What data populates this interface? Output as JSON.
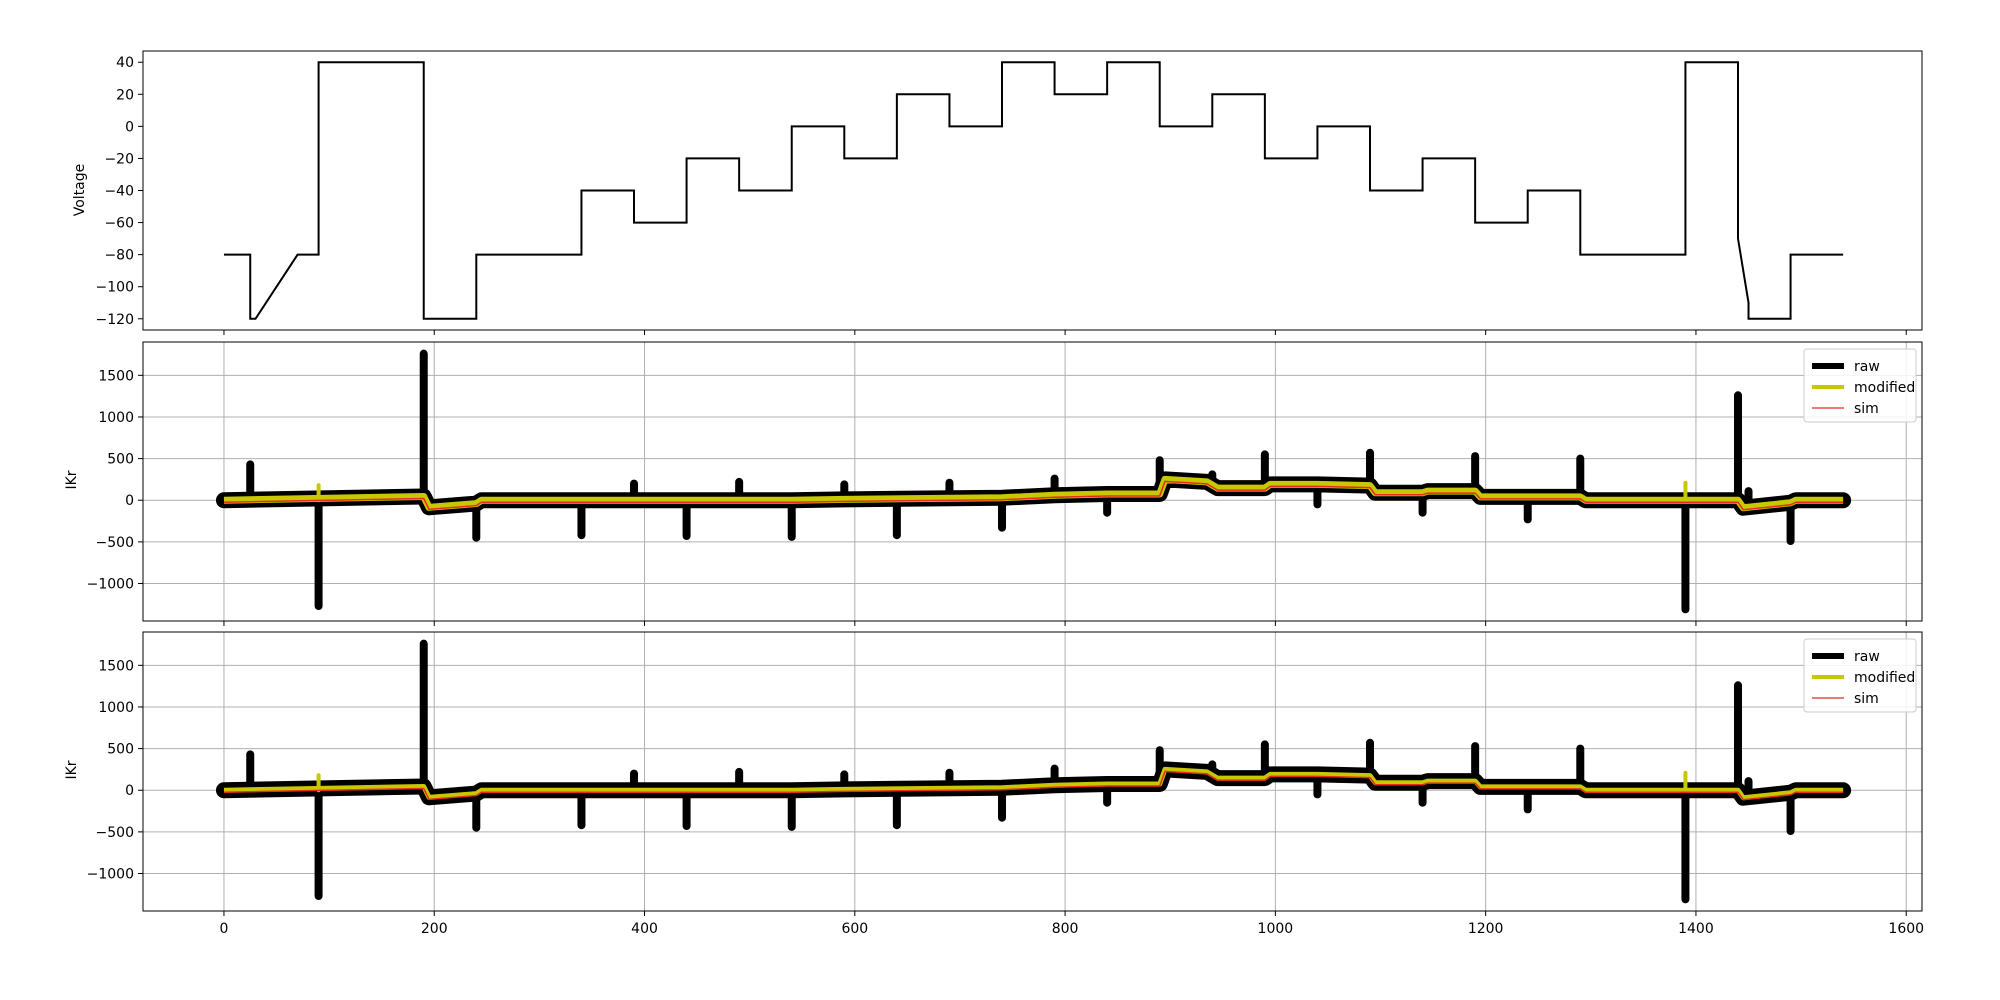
{
  "chart_data": [
    {
      "type": "line",
      "title": "",
      "xlabel": "",
      "ylabel": "Voltage",
      "xlim": [
        -77,
        1615
      ],
      "ylim": [
        -127,
        47
      ],
      "yticks": [
        40,
        20,
        0,
        -20,
        -40,
        -60,
        -80,
        -100,
        -120
      ],
      "grid": false,
      "series": [
        {
          "color": "#000000",
          "points": [
            [
              0,
              -80
            ],
            [
              25,
              -80
            ],
            [
              25,
              -120
            ],
            [
              30,
              -120
            ],
            [
              70,
              -80
            ],
            [
              90,
              -80
            ],
            [
              90,
              40
            ],
            [
              190,
              40
            ],
            [
              190,
              -120
            ],
            [
              240,
              -120
            ],
            [
              240,
              -80
            ],
            [
              340,
              -80
            ],
            [
              340,
              -40
            ],
            [
              390,
              -40
            ],
            [
              390,
              -60
            ],
            [
              440,
              -60
            ],
            [
              440,
              -20
            ],
            [
              490,
              -20
            ],
            [
              490,
              -40
            ],
            [
              540,
              -40
            ],
            [
              540,
              0
            ],
            [
              590,
              0
            ],
            [
              590,
              -20
            ],
            [
              640,
              -20
            ],
            [
              640,
              20
            ],
            [
              690,
              20
            ],
            [
              690,
              0
            ],
            [
              740,
              0
            ],
            [
              740,
              40
            ],
            [
              790,
              40
            ],
            [
              790,
              20
            ],
            [
              840,
              20
            ],
            [
              840,
              40
            ],
            [
              890,
              40
            ],
            [
              890,
              0
            ],
            [
              940,
              0
            ],
            [
              940,
              20
            ],
            [
              990,
              20
            ],
            [
              990,
              -20
            ],
            [
              1040,
              -20
            ],
            [
              1040,
              0
            ],
            [
              1090,
              0
            ],
            [
              1090,
              -40
            ],
            [
              1140,
              -40
            ],
            [
              1140,
              -20
            ],
            [
              1190,
              -20
            ],
            [
              1190,
              -60
            ],
            [
              1240,
              -60
            ],
            [
              1240,
              -40
            ],
            [
              1290,
              -40
            ],
            [
              1290,
              -80
            ],
            [
              1390,
              -80
            ],
            [
              1390,
              40
            ],
            [
              1440,
              40
            ],
            [
              1440,
              -70
            ],
            [
              1450,
              -110
            ],
            [
              1450,
              -120
            ],
            [
              1490,
              -120
            ],
            [
              1490,
              -80
            ],
            [
              1540,
              -80
            ]
          ]
        }
      ]
    },
    {
      "type": "line",
      "title": "",
      "xlabel": "",
      "ylabel": "IKr",
      "xlim": [
        -77,
        1615
      ],
      "ylim": [
        -1450,
        1900
      ],
      "yticks": [
        1500,
        1000,
        500,
        0,
        -500,
        -1000
      ],
      "grid": true,
      "legend": "top-right",
      "series": [
        {
          "name": "raw",
          "color": "#000000"
        },
        {
          "name": "modified",
          "color": "#c8c800"
        },
        {
          "name": "sim",
          "color": "#e82b1e"
        }
      ],
      "baseline": [
        [
          0,
          0
        ],
        [
          190,
          45
        ],
        [
          195,
          -85
        ],
        [
          240,
          -40
        ],
        [
          245,
          0
        ],
        [
          540,
          0
        ],
        [
          590,
          10
        ],
        [
          740,
          30
        ],
        [
          790,
          60
        ],
        [
          840,
          75
        ],
        [
          890,
          75
        ],
        [
          895,
          250
        ],
        [
          935,
          220
        ],
        [
          945,
          145
        ],
        [
          990,
          145
        ],
        [
          995,
          190
        ],
        [
          1040,
          190
        ],
        [
          1090,
          175
        ],
        [
          1095,
          90
        ],
        [
          1140,
          90
        ],
        [
          1145,
          110
        ],
        [
          1190,
          110
        ],
        [
          1195,
          40
        ],
        [
          1290,
          40
        ],
        [
          1295,
          0
        ],
        [
          1440,
          0
        ],
        [
          1445,
          -90
        ],
        [
          1490,
          -30
        ],
        [
          1495,
          0
        ],
        [
          1540,
          0
        ]
      ],
      "spikes": [
        [
          25,
          430
        ],
        [
          90,
          -1270
        ],
        [
          190,
          1760
        ],
        [
          240,
          -450
        ],
        [
          340,
          -420
        ],
        [
          390,
          200
        ],
        [
          440,
          -430
        ],
        [
          490,
          220
        ],
        [
          540,
          -440
        ],
        [
          590,
          190
        ],
        [
          640,
          -420
        ],
        [
          690,
          210
        ],
        [
          740,
          -330
        ],
        [
          790,
          260
        ],
        [
          840,
          -150
        ],
        [
          890,
          480
        ],
        [
          940,
          310
        ],
        [
          990,
          550
        ],
        [
          1040,
          -50
        ],
        [
          1090,
          570
        ],
        [
          1140,
          -150
        ],
        [
          1190,
          530
        ],
        [
          1240,
          -230
        ],
        [
          1290,
          500
        ],
        [
          1390,
          -1310
        ],
        [
          1440,
          1260
        ],
        [
          1450,
          110
        ],
        [
          1490,
          -490
        ]
      ],
      "modified_spikes": [
        [
          90,
          180
        ],
        [
          1390,
          210
        ]
      ]
    },
    {
      "type": "line",
      "title": "",
      "xlabel": "",
      "ylabel": "IKr",
      "xlim": [
        -77,
        1615
      ],
      "ylim": [
        -1450,
        1900
      ],
      "xticks": [
        0,
        200,
        400,
        600,
        800,
        1000,
        1200,
        1400,
        1600
      ],
      "yticks": [
        1500,
        1000,
        500,
        0,
        -500,
        -1000
      ],
      "grid": true,
      "legend": "top-right",
      "series": [
        {
          "name": "raw",
          "color": "#000000"
        },
        {
          "name": "modified",
          "color": "#c8c800"
        },
        {
          "name": "sim",
          "color": "#e82b1e"
        }
      ],
      "baseline": [
        [
          0,
          0
        ],
        [
          190,
          45
        ],
        [
          195,
          -85
        ],
        [
          240,
          -40
        ],
        [
          245,
          0
        ],
        [
          540,
          0
        ],
        [
          590,
          10
        ],
        [
          740,
          30
        ],
        [
          790,
          60
        ],
        [
          840,
          75
        ],
        [
          890,
          75
        ],
        [
          895,
          250
        ],
        [
          935,
          220
        ],
        [
          945,
          145
        ],
        [
          990,
          145
        ],
        [
          995,
          190
        ],
        [
          1040,
          190
        ],
        [
          1090,
          175
        ],
        [
          1095,
          90
        ],
        [
          1140,
          90
        ],
        [
          1145,
          110
        ],
        [
          1190,
          110
        ],
        [
          1195,
          40
        ],
        [
          1290,
          40
        ],
        [
          1295,
          0
        ],
        [
          1440,
          0
        ],
        [
          1445,
          -90
        ],
        [
          1490,
          -30
        ],
        [
          1495,
          0
        ],
        [
          1540,
          0
        ]
      ],
      "spikes": [
        [
          25,
          430
        ],
        [
          90,
          -1270
        ],
        [
          190,
          1760
        ],
        [
          240,
          -450
        ],
        [
          340,
          -420
        ],
        [
          390,
          200
        ],
        [
          440,
          -430
        ],
        [
          490,
          220
        ],
        [
          540,
          -440
        ],
        [
          590,
          190
        ],
        [
          640,
          -420
        ],
        [
          690,
          210
        ],
        [
          740,
          -330
        ],
        [
          790,
          260
        ],
        [
          840,
          -150
        ],
        [
          890,
          480
        ],
        [
          940,
          310
        ],
        [
          990,
          550
        ],
        [
          1040,
          -50
        ],
        [
          1090,
          570
        ],
        [
          1140,
          -150
        ],
        [
          1190,
          530
        ],
        [
          1240,
          -230
        ],
        [
          1290,
          500
        ],
        [
          1390,
          -1310
        ],
        [
          1440,
          1260
        ],
        [
          1450,
          110
        ],
        [
          1490,
          -490
        ]
      ],
      "modified_spikes": [
        [
          90,
          180
        ],
        [
          1390,
          210
        ]
      ]
    }
  ]
}
